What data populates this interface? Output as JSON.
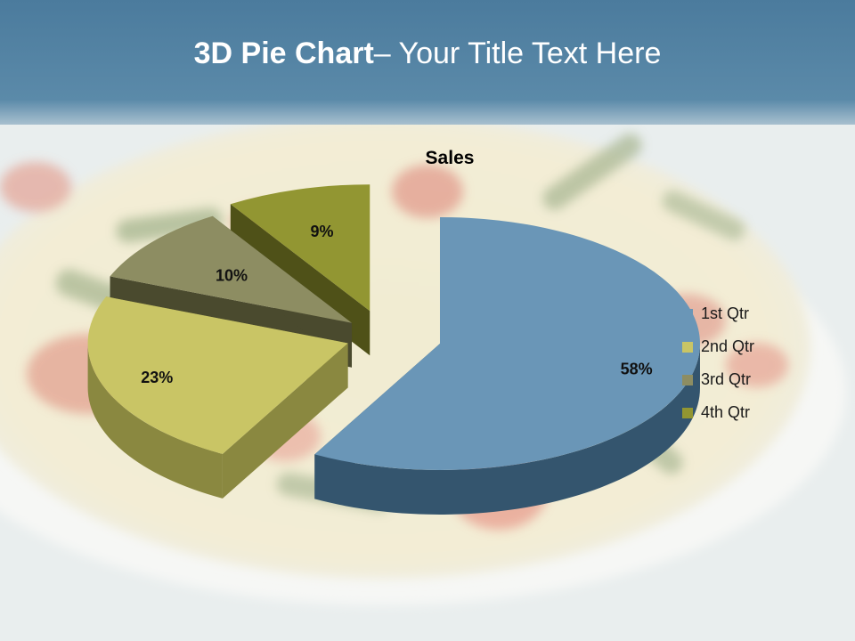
{
  "slide": {
    "title_bold": "3D Pie Chart",
    "title_rest": "– Your Title Text Here"
  },
  "chart_data": {
    "type": "pie",
    "title": "Sales",
    "categories": [
      "1st Qtr",
      "2nd Qtr",
      "3rd Qtr",
      "4th Qtr"
    ],
    "values": [
      58,
      23,
      10,
      9
    ],
    "data_labels": [
      "58%",
      "23%",
      "10%",
      "9%"
    ],
    "exploded": true,
    "three_d": true,
    "legend_position": "right"
  },
  "colors": {
    "header": "#4d7fa0",
    "slices": [
      "#6a96b7",
      "#c9c565",
      "#8d8d62",
      "#929632"
    ],
    "slices_side": [
      "#34556e",
      "#8a8840",
      "#4a4a2e",
      "#4f5118"
    ]
  }
}
